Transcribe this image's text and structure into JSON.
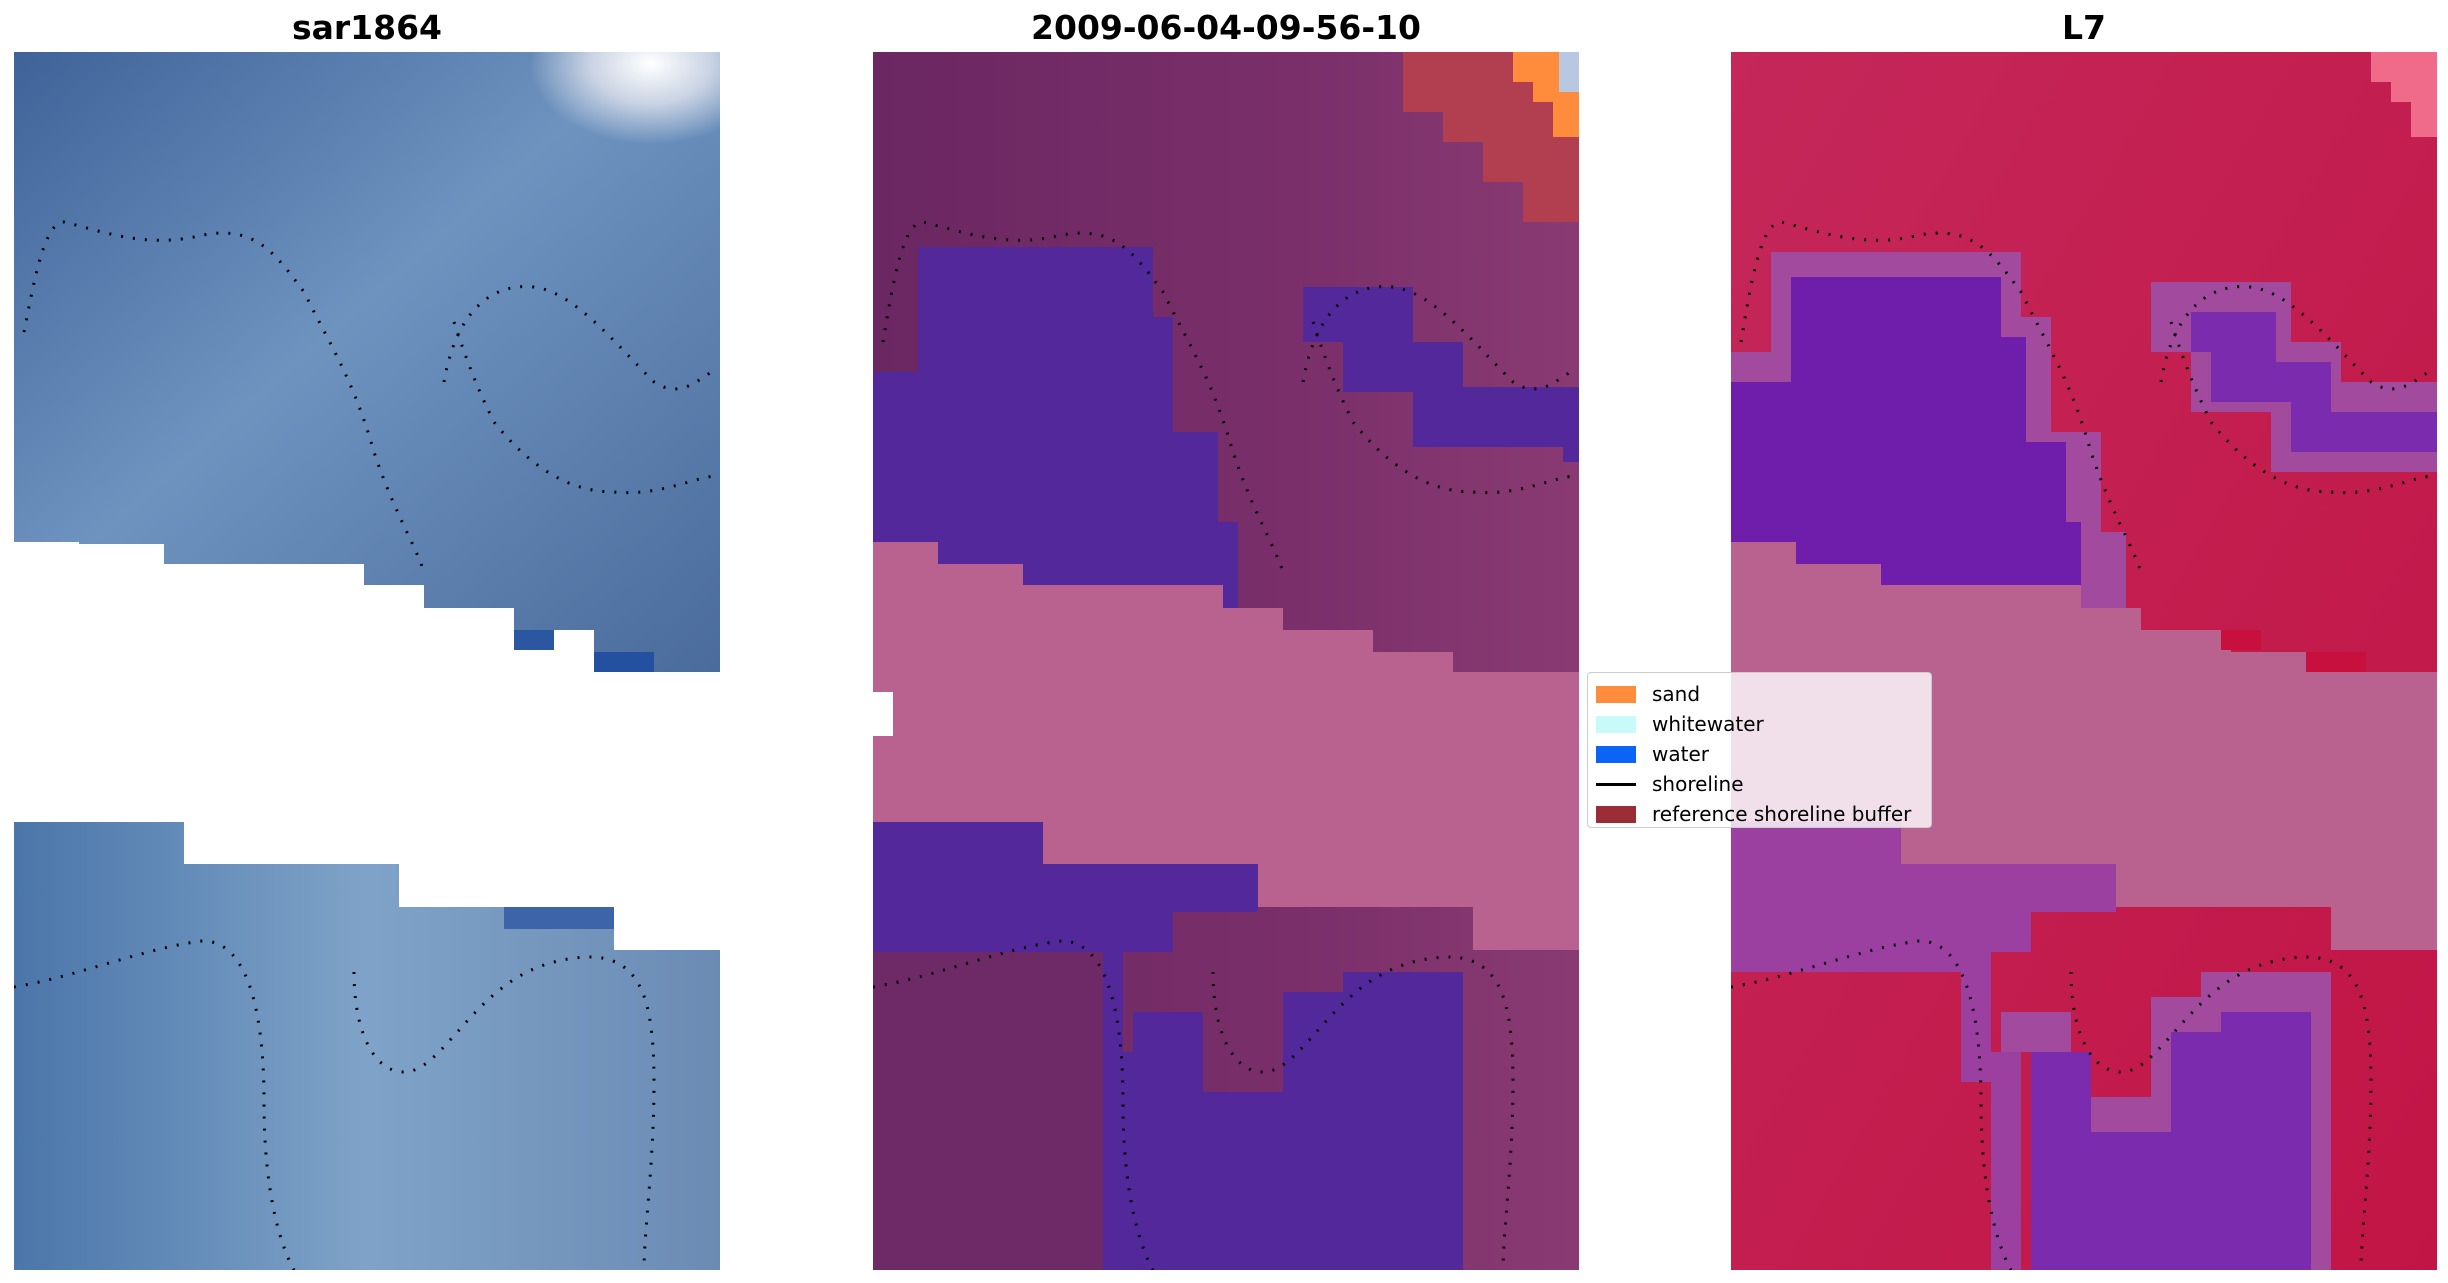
{
  "panels": [
    {
      "title": "sar1864",
      "image": "rgb-satellite-image"
    },
    {
      "title": "2009-06-04-09-56-10",
      "image": "classified-image"
    },
    {
      "title": "L7",
      "image": "water-index-image"
    }
  ],
  "legend": {
    "items": [
      {
        "label": "sand",
        "color": "#ff8c3c",
        "kind": "patch"
      },
      {
        "label": "whitewater",
        "color": "#c8fafa",
        "kind": "patch"
      },
      {
        "label": "water",
        "color": "#0a64f5",
        "kind": "patch"
      },
      {
        "label": "shoreline",
        "color": "#000000",
        "kind": "line"
      },
      {
        "label": "reference shoreline buffer",
        "color": "#9b2d37",
        "kind": "patch"
      }
    ]
  },
  "colors": {
    "rgb_water": "#4a6fa5",
    "rgb_light": "#7fa3c8",
    "class_land": "#6e2a66",
    "class_water": "#52289a",
    "buffer": "#b9628f",
    "index_high": "#c41a4a",
    "index_low": "#6e1eaa",
    "shoreline": "#000000"
  }
}
